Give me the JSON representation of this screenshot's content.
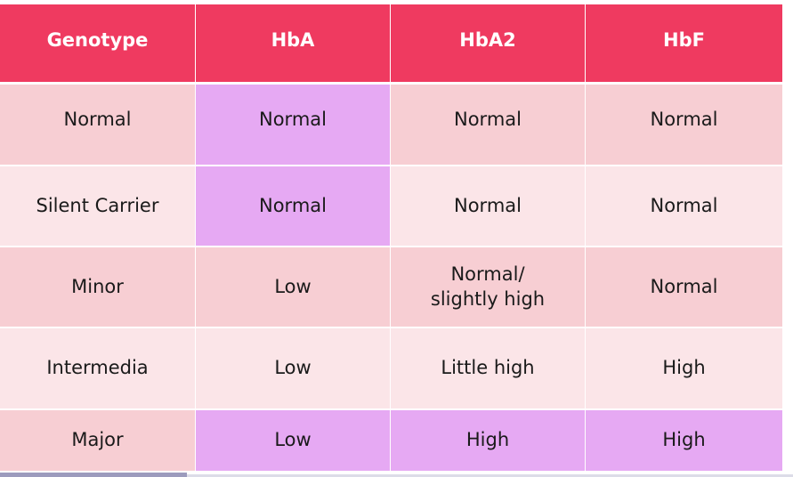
{
  "table": {
    "headers": [
      "Genotype",
      "HbA",
      "HbA2",
      "HbF"
    ],
    "rows": [
      [
        "Normal",
        "Normal",
        "Normal",
        "Normal"
      ],
      [
        "Silent Carrier",
        "Normal",
        "Normal",
        "Normal"
      ],
      [
        "Minor",
        "Low",
        "Normal/ slightly high",
        "Normal"
      ],
      [
        "Intermedia",
        "Low",
        "Little high",
        "High"
      ],
      [
        "Major",
        "Low",
        "High",
        "High"
      ]
    ]
  },
  "colors": {
    "header": "#ef3a60",
    "row_dark": "#f7ced3",
    "row_light": "#fbe5e8",
    "highlight": "#e6a9f3"
  }
}
